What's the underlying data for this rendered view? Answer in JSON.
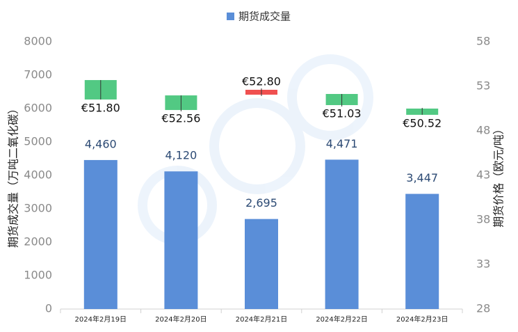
{
  "chart_data": {
    "type": "bar",
    "legend": "期货成交量",
    "y_label": "期货成交量（万吨二氧化碳）",
    "y2_label": "期货价格（欧元/吨）",
    "categories": [
      "2024年2月19日",
      "2024年2月20日",
      "2024年2月21日",
      "2024年2月22日",
      "2024年2月23日"
    ],
    "series": [
      {
        "name": "期货成交量",
        "color": "#5a8ed8",
        "values": [
          4460,
          4120,
          2695,
          4471,
          3447
        ],
        "value_labels": [
          "4,460",
          "4,120",
          "2,695",
          "4,471",
          "3,447"
        ]
      }
    ],
    "candles": {
      "axis": "y2",
      "up_color": "#f05050",
      "down_color": "#52c983",
      "open": [
        53.7,
        51.98,
        52.06,
        52.14,
        50.5
      ],
      "close": [
        51.52,
        50.34,
        52.61,
        50.89,
        49.8
      ],
      "high": [
        53.7,
        51.98,
        52.77,
        52.14,
        50.58
      ],
      "low": [
        51.52,
        50.19,
        51.91,
        50.73,
        49.8
      ],
      "values": [
        51.8,
        52.56,
        52.8,
        51.03,
        50.52
      ],
      "value_labels": [
        "€51.80",
        "€52.56",
        "€52.80",
        "€51.03",
        "€50.52"
      ]
    },
    "ylim": [
      0,
      8000
    ],
    "yticks": [
      0,
      1000,
      2000,
      3000,
      4000,
      5000,
      6000,
      7000,
      8000
    ],
    "y2lim": [
      28,
      58
    ],
    "y2ticks": [
      28,
      33,
      38,
      43,
      48,
      53,
      58
    ]
  }
}
